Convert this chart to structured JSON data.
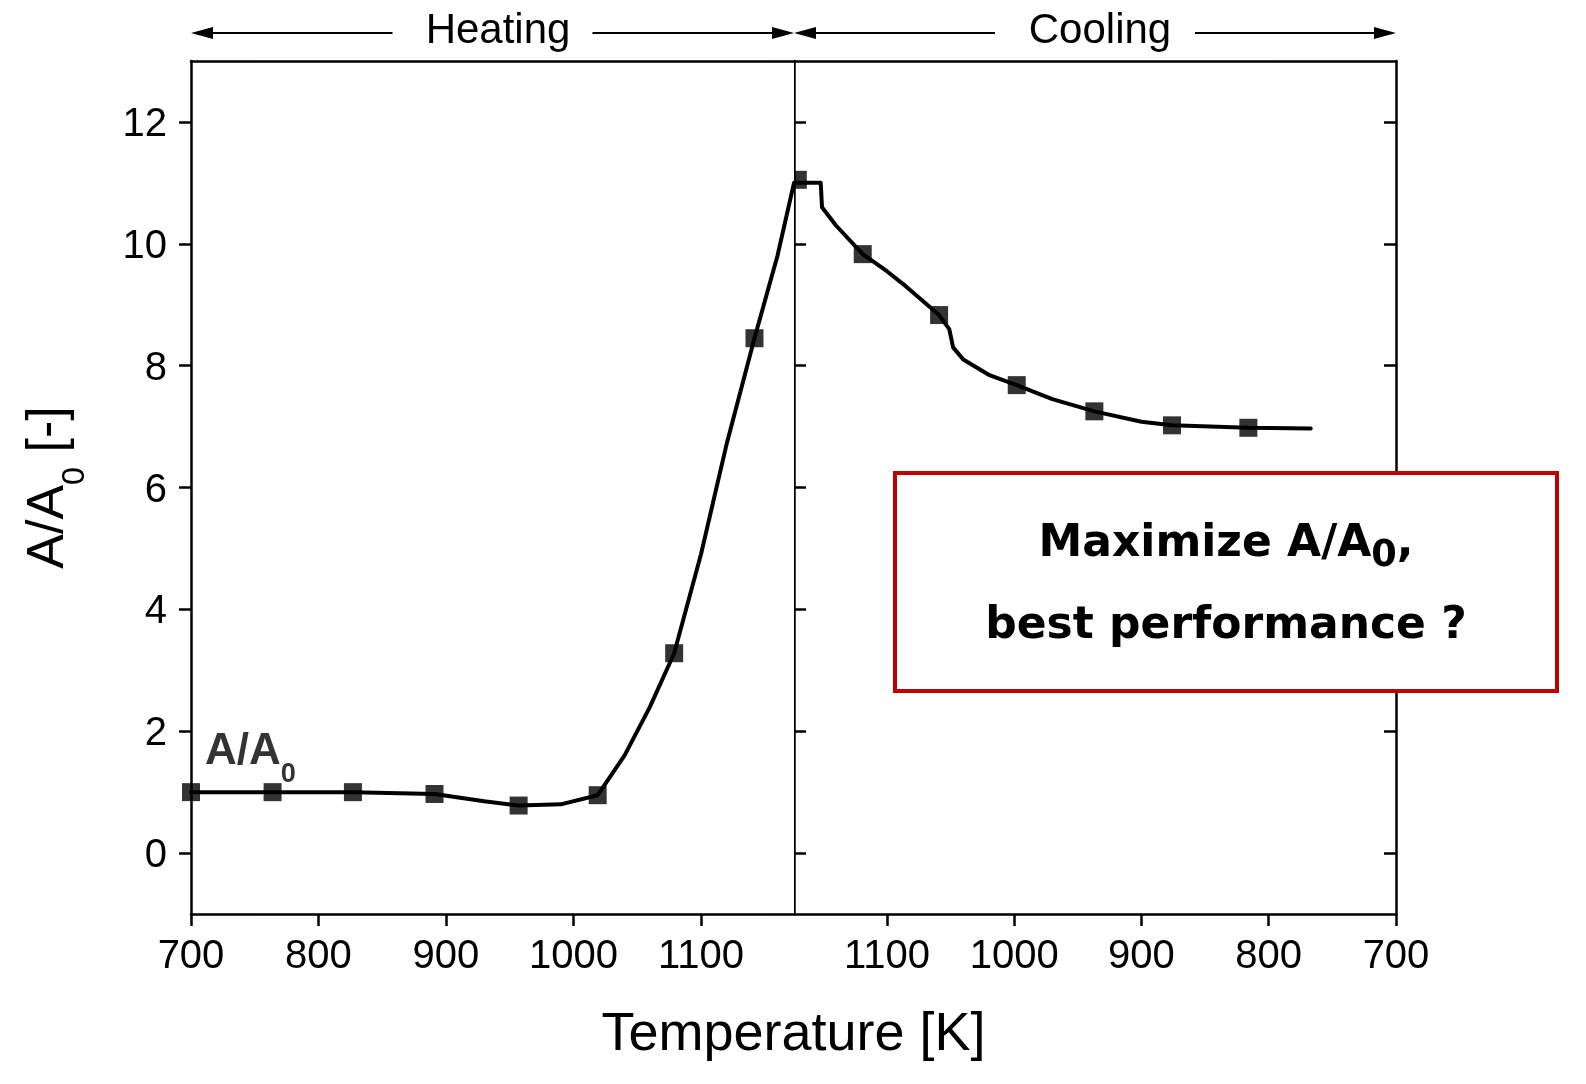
{
  "chart_data": [
    {
      "type": "line",
      "title": "Heating",
      "xlabel": "Temperature [K]",
      "ylabel": "A/A$_{0}$ [-]",
      "xlim": [
        700,
        1173
      ],
      "xticks": [
        700,
        800,
        900,
        1000,
        1100
      ],
      "ylim": [
        -1,
        13
      ],
      "yticks": [
        0,
        2,
        4,
        6,
        8,
        10,
        12
      ],
      "grid": false,
      "legend": false,
      "line_style": "solid",
      "series": [
        {
          "color": "#000000",
          "marker": "none",
          "x": [
            700,
            764,
            827,
            891,
            930,
            957,
            990,
            1019,
            1040,
            1060,
            1079,
            1100,
            1120,
            1142,
            1160,
            1173
          ],
          "values": [
            1.0,
            1.0,
            1.0,
            0.97,
            0.85,
            0.78,
            0.8,
            0.95,
            1.6,
            2.4,
            3.28,
            4.9,
            6.7,
            8.45,
            9.8,
            11.0
          ]
        },
        {
          "type": "scatter",
          "name": "A/A$_{0}$",
          "color": "#000000",
          "marker": "square",
          "x": [
            700,
            764,
            827,
            891,
            957,
            1019,
            1079,
            1142
          ],
          "values": [
            1.0,
            1.0,
            1.0,
            0.97,
            0.78,
            0.95,
            3.28,
            8.45
          ]
        }
      ]
    },
    {
      "type": "line",
      "title": "Cooling",
      "xlim": [
        1173,
        700
      ],
      "xticks": [
        1100,
        1000,
        900,
        800,
        700
      ],
      "ylim": [
        -1,
        13
      ],
      "yticks": [
        0,
        2,
        4,
        6,
        8,
        10,
        12
      ],
      "tick_labels": "x",
      "grid": false,
      "legend": false,
      "line_style": "solid",
      "annotations": [
        "Maximize A/A$_{0}$,\nbest performance ?"
      ],
      "series": [
        {
          "color": "#000000",
          "marker": "none",
          "x": [
            1173,
            1160,
            1152,
            1151,
            1140,
            1119,
            1100,
            1085,
            1059,
            1051,
            1048,
            1040,
            1020,
            998,
            970,
            937,
            900,
            876,
            816,
            767
          ],
          "values": [
            11.0,
            11.0,
            11.0,
            10.6,
            10.3,
            9.83,
            9.55,
            9.3,
            8.83,
            8.6,
            8.3,
            8.1,
            7.85,
            7.68,
            7.45,
            7.25,
            7.08,
            7.02,
            6.98,
            6.97
          ]
        },
        {
          "type": "scatter",
          "color": "#000000",
          "marker": "square",
          "x": [
            1170,
            1119,
            1059,
            998,
            937,
            876,
            816
          ],
          "values": [
            11.05,
            9.83,
            8.83,
            7.68,
            7.25,
            7.02,
            6.98
          ]
        }
      ]
    }
  ]
}
